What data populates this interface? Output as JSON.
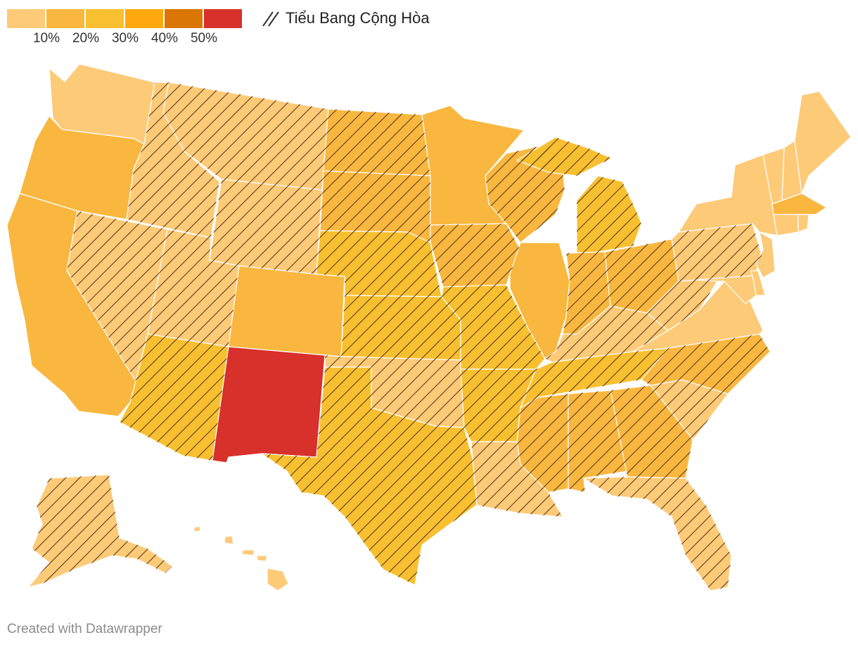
{
  "legend": {
    "ticks": [
      "10%",
      "20%",
      "30%",
      "40%",
      "50%"
    ],
    "colors": [
      "#fdca78",
      "#f9b73f",
      "#f8c030",
      "#fda80c",
      "#d97604",
      "#d8302a"
    ],
    "hatch_label": "Tiểu Bang Cộng Hòa"
  },
  "footer": {
    "credit": "Created with Datawrapper"
  },
  "map": {
    "states": [
      {
        "id": "WA",
        "cls": 0,
        "rep": false
      },
      {
        "id": "OR",
        "cls": 1,
        "rep": false
      },
      {
        "id": "CA",
        "cls": 1,
        "rep": false
      },
      {
        "id": "NV",
        "cls": 0,
        "rep": true
      },
      {
        "id": "ID",
        "cls": 0,
        "rep": true
      },
      {
        "id": "MT",
        "cls": 0,
        "rep": true
      },
      {
        "id": "WY",
        "cls": 0,
        "rep": true
      },
      {
        "id": "UT",
        "cls": 0,
        "rep": true
      },
      {
        "id": "AZ",
        "cls": 2,
        "rep": true
      },
      {
        "id": "CO",
        "cls": 1,
        "rep": false
      },
      {
        "id": "NM",
        "cls": 5,
        "rep": false
      },
      {
        "id": "ND",
        "cls": 1,
        "rep": true
      },
      {
        "id": "SD",
        "cls": 1,
        "rep": true
      },
      {
        "id": "NE",
        "cls": 2,
        "rep": true
      },
      {
        "id": "KS",
        "cls": 2,
        "rep": true
      },
      {
        "id": "OK",
        "cls": 0,
        "rep": true
      },
      {
        "id": "TX",
        "cls": 2,
        "rep": true
      },
      {
        "id": "MN",
        "cls": 1,
        "rep": false
      },
      {
        "id": "IA",
        "cls": 1,
        "rep": true
      },
      {
        "id": "MO",
        "cls": 2,
        "rep": true
      },
      {
        "id": "AR",
        "cls": 2,
        "rep": true
      },
      {
        "id": "LA",
        "cls": 0,
        "rep": true
      },
      {
        "id": "WI",
        "cls": 1,
        "rep": true
      },
      {
        "id": "IL",
        "cls": 1,
        "rep": false
      },
      {
        "id": "MI",
        "cls": 2,
        "rep": true
      },
      {
        "id": "IN",
        "cls": 1,
        "rep": true
      },
      {
        "id": "OH",
        "cls": 1,
        "rep": true
      },
      {
        "id": "KY",
        "cls": 0,
        "rep": true
      },
      {
        "id": "TN",
        "cls": 2,
        "rep": true
      },
      {
        "id": "MS",
        "cls": 1,
        "rep": true
      },
      {
        "id": "AL",
        "cls": 1,
        "rep": true
      },
      {
        "id": "GA",
        "cls": 1,
        "rep": true
      },
      {
        "id": "FL",
        "cls": 0,
        "rep": true
      },
      {
        "id": "SC",
        "cls": 0,
        "rep": true
      },
      {
        "id": "NC",
        "cls": 1,
        "rep": true
      },
      {
        "id": "VA",
        "cls": 0,
        "rep": false
      },
      {
        "id": "WV",
        "cls": 0,
        "rep": true
      },
      {
        "id": "PA",
        "cls": 0,
        "rep": true
      },
      {
        "id": "NY",
        "cls": 0,
        "rep": false
      },
      {
        "id": "VT",
        "cls": 0,
        "rep": false
      },
      {
        "id": "NH",
        "cls": 0,
        "rep": false
      },
      {
        "id": "ME",
        "cls": 0,
        "rep": false
      },
      {
        "id": "MA",
        "cls": 1,
        "rep": false
      },
      {
        "id": "CT",
        "cls": 0,
        "rep": false
      },
      {
        "id": "RI",
        "cls": 0,
        "rep": false
      },
      {
        "id": "NJ",
        "cls": 0,
        "rep": false
      },
      {
        "id": "DE",
        "cls": 0,
        "rep": false
      },
      {
        "id": "MD",
        "cls": 0,
        "rep": false
      },
      {
        "id": "AK",
        "cls": 0,
        "rep": true
      },
      {
        "id": "HI",
        "cls": 0,
        "rep": false
      }
    ]
  }
}
